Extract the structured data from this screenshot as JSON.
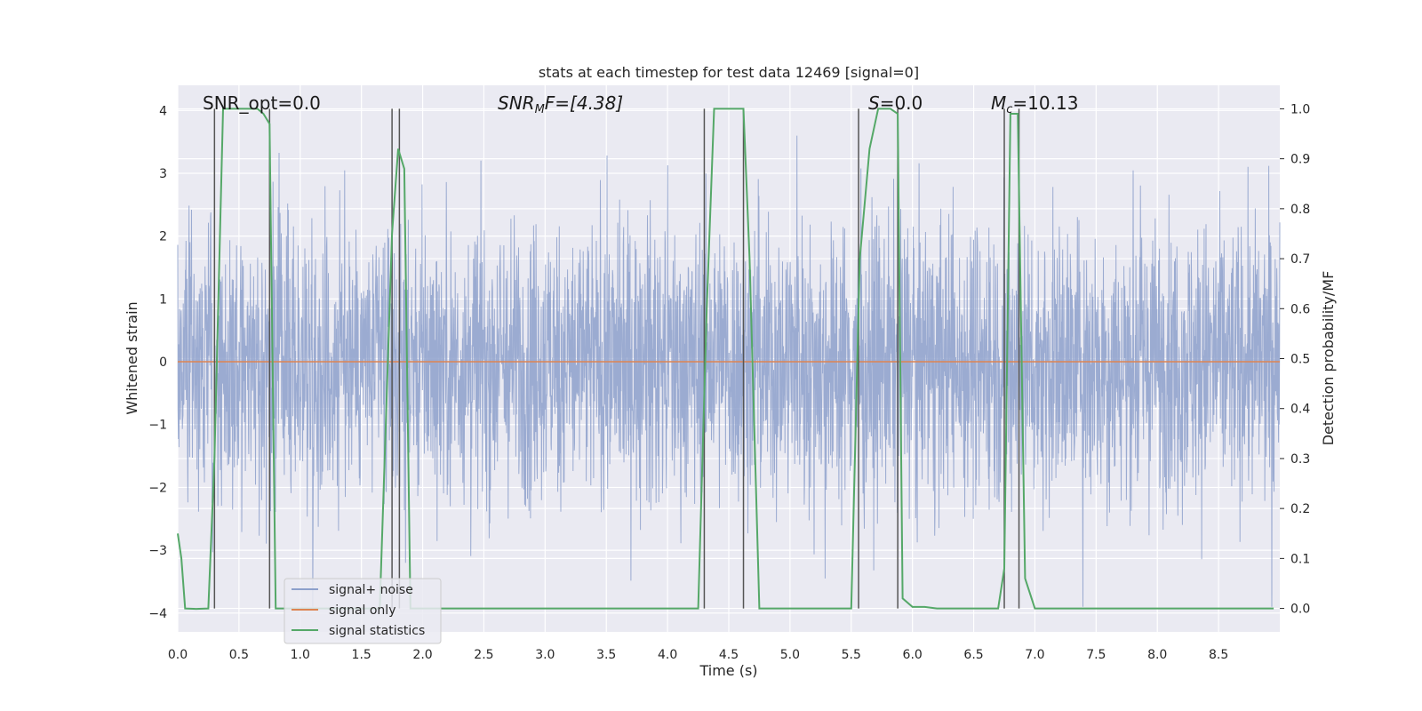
{
  "chart_data": {
    "type": "line",
    "title": "stats at each timestep for test data 12469 [signal=0]",
    "xlabel": "Time (s)",
    "ylabel": "Whitened strain",
    "y2label": "Detection probability/MF",
    "xlim": [
      0.0,
      9.0
    ],
    "ylim": [
      -4.3,
      4.4
    ],
    "y2lim": [
      -0.047,
      1.047
    ],
    "xticks": [
      0.0,
      0.5,
      1.0,
      1.5,
      2.0,
      2.5,
      3.0,
      3.5,
      4.0,
      4.5,
      5.0,
      5.5,
      6.0,
      6.5,
      7.0,
      7.5,
      8.0,
      8.5
    ],
    "xtick_labels": [
      "0.0",
      "0.5",
      "1.0",
      "1.5",
      "2.0",
      "2.5",
      "3.0",
      "3.5",
      "4.0",
      "4.5",
      "5.0",
      "5.5",
      "6.0",
      "6.5",
      "7.0",
      "7.5",
      "8.0",
      "8.5"
    ],
    "yticks": [
      -4,
      -3,
      -2,
      -1,
      0,
      1,
      2,
      3,
      4
    ],
    "ytick_labels": [
      "−4",
      "−3",
      "−2",
      "−1",
      "0",
      "1",
      "2",
      "3",
      "4"
    ],
    "y2ticks": [
      0.0,
      0.1,
      0.2,
      0.3,
      0.4,
      0.5,
      0.6,
      0.7,
      0.8,
      0.9,
      1.0
    ],
    "y2tick_labels": [
      "0.0",
      "0.1",
      "0.2",
      "0.3",
      "0.4",
      "0.5",
      "0.6",
      "0.7",
      "0.8",
      "0.9",
      "1.0"
    ],
    "grid": true,
    "legend_position": "lower-left",
    "annotations": {
      "snr_opt": "SNR_opt=0.0",
      "snr_mf_main": "SNR",
      "snr_mf_sub": "M",
      "snr_mf_rest": "F=[4.38]",
      "s_main": "S",
      "s_rest": "=0.0",
      "mc_main": "M",
      "mc_sub": "c",
      "mc_rest": "=10.13"
    },
    "series": [
      {
        "name": "signal+ noise",
        "color": "#8da0cb",
        "axis": "left",
        "description_kind": "noise",
        "amplitude_envelope": [
          -3.9,
          3.6
        ]
      },
      {
        "name": "signal only",
        "color": "#dd8452",
        "axis": "left",
        "x": [
          0.0,
          9.0
        ],
        "y": [
          0.0,
          0.0
        ]
      },
      {
        "name": "signal statistics",
        "color": "#55a868",
        "axis": "right",
        "x": [
          0.0,
          0.03,
          0.06,
          0.15,
          0.25,
          0.3,
          0.37,
          0.45,
          0.55,
          0.65,
          0.7,
          0.75,
          0.8,
          1.5,
          1.65,
          1.75,
          1.8,
          1.85,
          1.9,
          2.0,
          2.5,
          3.0,
          3.5,
          4.0,
          4.25,
          4.32,
          4.38,
          4.5,
          4.62,
          4.67,
          4.75,
          5.0,
          5.5,
          5.57,
          5.65,
          5.72,
          5.82,
          5.88,
          5.92,
          6.0,
          6.1,
          6.2,
          6.5,
          6.7,
          6.75,
          6.8,
          6.86,
          6.92,
          7.0,
          7.5,
          8.0,
          8.5,
          8.95
        ],
        "y": [
          0.15,
          0.1,
          0.0,
          -0.001,
          0.0,
          0.3,
          1.0,
          1.0,
          1.0,
          1.0,
          0.99,
          0.97,
          0.0,
          0.0,
          0.0,
          0.75,
          0.92,
          0.88,
          0.0,
          0.0,
          0.0,
          0.0,
          0.0,
          0.0,
          0.0,
          0.6,
          1.0,
          1.0,
          1.0,
          0.7,
          0.0,
          0.0,
          0.0,
          0.7,
          0.92,
          1.0,
          1.0,
          0.99,
          0.02,
          0.003,
          0.003,
          0.0,
          0.0,
          0.0,
          0.08,
          0.99,
          0.99,
          0.06,
          0.0,
          0.0,
          0.0,
          0.0,
          0.0
        ]
      }
    ],
    "vertical_lines": [
      0.3,
      0.75,
      1.75,
      1.81,
      4.3,
      4.62,
      5.56,
      5.88,
      6.75,
      6.87
    ],
    "vertical_line_color": "#555555"
  }
}
